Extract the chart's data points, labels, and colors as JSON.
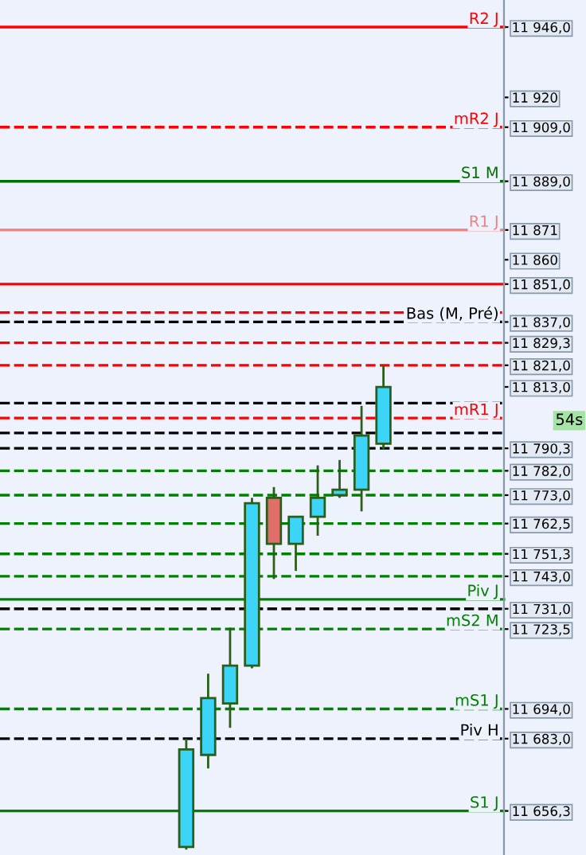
{
  "chart_data": {
    "type": "candlestick",
    "categories": [
      null,
      null,
      null,
      null,
      null,
      null,
      null,
      null,
      null,
      null,
      null,
      null,
      null,
      null,
      null,
      null,
      null,
      null,
      null,
      null,
      null,
      null,
      null
    ],
    "ohlc": [
      null,
      null,
      null,
      null,
      null,
      null,
      null,
      null,
      [
        11643,
        11683,
        11642,
        11679
      ],
      [
        11677,
        11707,
        11672,
        11698
      ],
      [
        11696,
        11724,
        11687,
        11710
      ],
      [
        11710,
        11772,
        11709,
        11770
      ],
      [
        11772,
        11776,
        11742,
        11755
      ],
      [
        11755,
        11765,
        11745,
        11765
      ],
      [
        11765,
        11784,
        11758,
        11772
      ],
      [
        11773,
        11786,
        11772,
        11775
      ],
      [
        11775,
        11806,
        11767,
        11795
      ],
      [
        11792,
        11821,
        11790,
        11813
      ],
      null,
      null,
      null,
      null,
      null
    ],
    "colors": [
      null,
      null,
      null,
      null,
      null,
      null,
      null,
      null,
      "#3dd5f7",
      "#3dd5f7",
      "#3dd5f7",
      "#3dd5f7",
      "#e06f6a",
      "#3dd5f7",
      "#3dd5f7",
      "#3dd5f7",
      "#3dd5f7",
      "#3dd5f7",
      null,
      null,
      null,
      null,
      null
    ],
    "ylim": [
      11640,
      11956
    ],
    "yticks": [
      {
        "value": 11946.0,
        "label": "11 946,0"
      },
      {
        "value": 11920,
        "label": "11 920"
      },
      {
        "value": 11909.0,
        "label": "11 909,0"
      },
      {
        "value": 11889.0,
        "label": "11 889,0"
      },
      {
        "value": 11871,
        "label": "11 871"
      },
      {
        "value": 11860,
        "label": "11 860"
      },
      {
        "value": 11851.0,
        "label": "11 851,0"
      },
      {
        "value": 11837.0,
        "label": "11 837,0"
      },
      {
        "value": 11829.3,
        "label": "11 829,3"
      },
      {
        "value": 11821.0,
        "label": "11 821,0"
      },
      {
        "value": 11813.0,
        "label": "11 813,0"
      },
      {
        "value": 11790.3,
        "label": "11 790,3"
      },
      {
        "value": 11782.0,
        "label": "11 782,0"
      },
      {
        "value": 11773.0,
        "label": "11 773,0"
      },
      {
        "value": 11762.5,
        "label": "11 762,5"
      },
      {
        "value": 11751.3,
        "label": "11 751,3"
      },
      {
        "value": 11743.0,
        "label": "11 743,0"
      },
      {
        "value": 11731.0,
        "label": "11 731,0"
      },
      {
        "value": 11723.5,
        "label": "11 723,5"
      },
      {
        "value": 11694.0,
        "label": "11 694,0"
      },
      {
        "value": 11683.0,
        "label": "11 683,0"
      },
      {
        "value": 11656.3,
        "label": "11 656,3"
      }
    ],
    "tick_labels": "y",
    "ref_lines": [
      {
        "axis": "y",
        "value": 11946.0,
        "label": "R2 J",
        "color": "#ff0000",
        "line_style": "solid"
      },
      {
        "axis": "y",
        "value": 11909.0,
        "label": "mR2 J",
        "color": "#ff0000",
        "line_style": "dashed"
      },
      {
        "axis": "y",
        "value": 11889.0,
        "label": "S1 M",
        "color": "#007000",
        "line_style": "solid"
      },
      {
        "axis": "y",
        "value": 11871,
        "label": "R1 J",
        "color": "#f08080",
        "line_style": "solid"
      },
      {
        "axis": "y",
        "value": 11851.0,
        "label": null,
        "color": "#ff0000",
        "line_style": "solid"
      },
      {
        "axis": "y",
        "value": 11840.5,
        "label": null,
        "color": "#ff0000",
        "line_style": "dashed"
      },
      {
        "axis": "y",
        "value": 11837.0,
        "label": "Bas (M, Pré)",
        "color": "#000000",
        "line_style": "dashed"
      },
      {
        "axis": "y",
        "value": 11829.3,
        "label": null,
        "color": "#ff0000",
        "line_style": "dashed"
      },
      {
        "axis": "y",
        "value": 11821.0,
        "label": null,
        "color": "#ff0000",
        "line_style": "dashed"
      },
      {
        "axis": "y",
        "value": 11807,
        "label": null,
        "color": "#000000",
        "line_style": "dashed"
      },
      {
        "axis": "y",
        "value": 11801.5,
        "label": "mR1 J",
        "color": "#ff0000",
        "line_style": "dashed"
      },
      {
        "axis": "y",
        "value": 11796.0,
        "label": null,
        "color": "#000000",
        "line_style": "dashed"
      },
      {
        "axis": "y",
        "value": 11790.3,
        "label": null,
        "color": "#000000",
        "line_style": "dashed"
      },
      {
        "axis": "y",
        "value": 11782.0,
        "label": null,
        "color": "#008000",
        "line_style": "dashed"
      },
      {
        "axis": "y",
        "value": 11773.0,
        "label": null,
        "color": "#008000",
        "line_style": "dashed"
      },
      {
        "axis": "y",
        "value": 11762.5,
        "label": null,
        "color": "#008000",
        "line_style": "dashed"
      },
      {
        "axis": "y",
        "value": 11751.3,
        "label": null,
        "color": "#008000",
        "line_style": "dashed"
      },
      {
        "axis": "y",
        "value": 11743.0,
        "label": null,
        "color": "#008000",
        "line_style": "dashed"
      },
      {
        "axis": "y",
        "value": 11734.5,
        "label": "Piv J",
        "color": "#008000",
        "line_style": "solid"
      },
      {
        "axis": "y",
        "value": 11731.0,
        "label": null,
        "color": "#000000",
        "line_style": "dashed"
      },
      {
        "axis": "y",
        "value": 11723.5,
        "label": "mS2 M",
        "color": "#008000",
        "line_style": "dashed"
      },
      {
        "axis": "y",
        "value": 11694.0,
        "label": "mS1 J",
        "color": "#008000",
        "line_style": "dashed"
      },
      {
        "axis": "y",
        "value": 11683.0,
        "label": "Piv H",
        "color": "#000000",
        "line_style": "dashed"
      },
      {
        "axis": "y",
        "value": 11656.3,
        "label": "S1 J",
        "color": "#008000",
        "line_style": "solid"
      }
    ],
    "annotations": [
      "54s"
    ]
  }
}
